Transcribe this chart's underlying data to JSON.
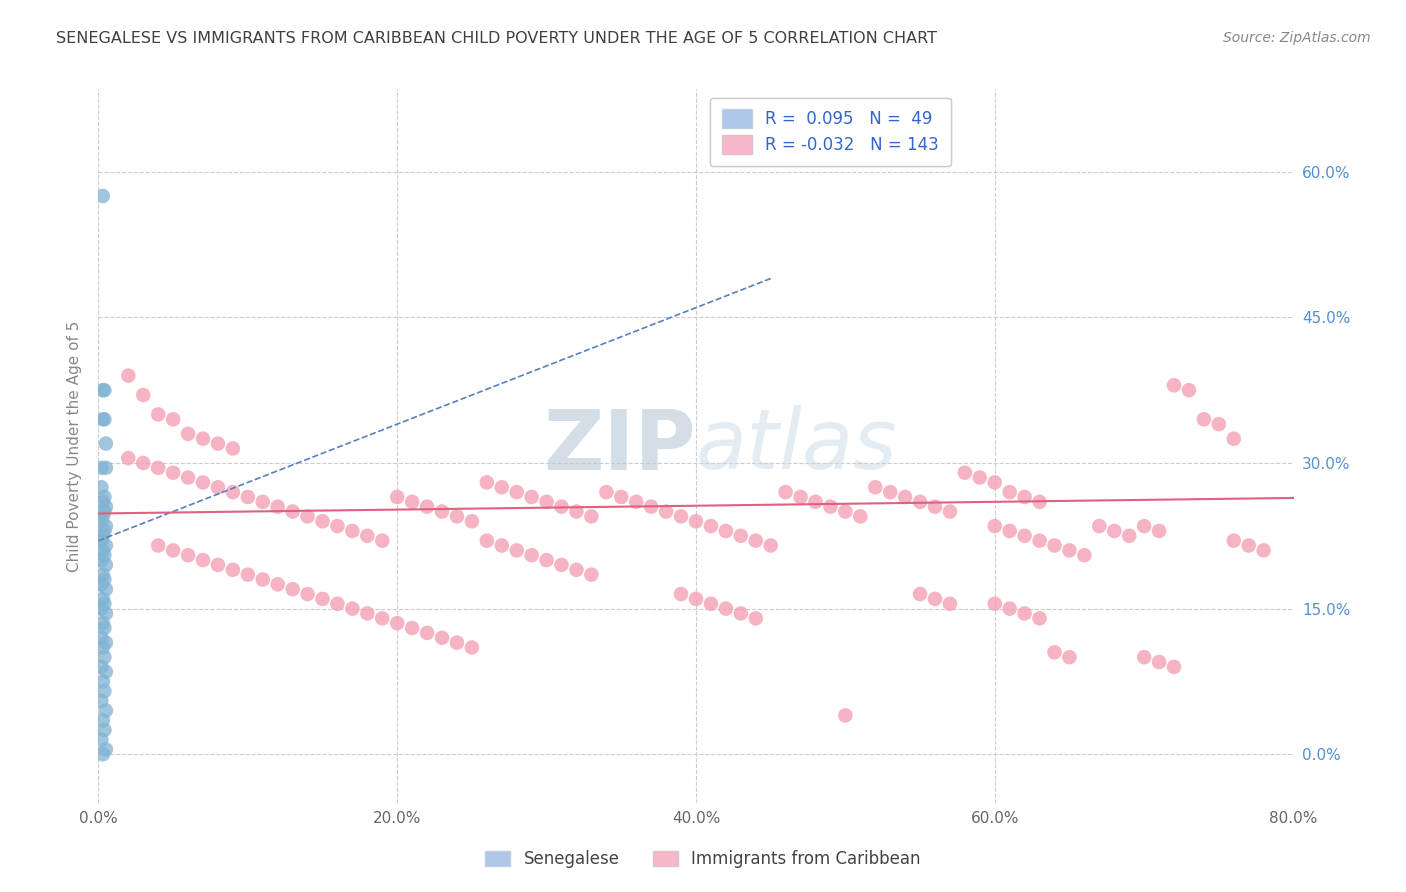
{
  "title": "SENEGALESE VS IMMIGRANTS FROM CARIBBEAN CHILD POVERTY UNDER THE AGE OF 5 CORRELATION CHART",
  "source": "Source: ZipAtlas.com",
  "ylabel": "Child Poverty Under the Age of 5",
  "xlim": [
    0.0,
    0.8
  ],
  "ylim": [
    -0.05,
    0.685
  ],
  "xtick_labels": [
    "0.0%",
    "20.0%",
    "40.0%",
    "60.0%",
    "80.0%"
  ],
  "xtick_values": [
    0.0,
    0.2,
    0.4,
    0.6,
    0.8
  ],
  "ytick_labels_right": [
    "0.0%",
    "15.0%",
    "30.0%",
    "45.0%",
    "60.0%"
  ],
  "ytick_values": [
    0.0,
    0.15,
    0.3,
    0.45,
    0.6
  ],
  "blue_color": "#7fb3d3",
  "pink_color": "#f4a0b5",
  "blue_trend_color": "#5580c0",
  "pink_trend_color": "#e06080",
  "watermark_zip": "ZIP",
  "watermark_atlas": "atlas",
  "background_color": "#ffffff",
  "grid_color": "#cccccc",
  "title_color": "#404040",
  "blue_scatter": [
    [
      0.003,
      0.575
    ],
    [
      0.004,
      0.375
    ],
    [
      0.004,
      0.345
    ],
    [
      0.005,
      0.32
    ],
    [
      0.005,
      0.295
    ],
    [
      0.003,
      0.375
    ],
    [
      0.003,
      0.345
    ],
    [
      0.002,
      0.295
    ],
    [
      0.002,
      0.275
    ],
    [
      0.004,
      0.265
    ],
    [
      0.003,
      0.26
    ],
    [
      0.005,
      0.255
    ],
    [
      0.004,
      0.25
    ],
    [
      0.003,
      0.245
    ],
    [
      0.002,
      0.24
    ],
    [
      0.005,
      0.235
    ],
    [
      0.004,
      0.23
    ],
    [
      0.003,
      0.225
    ],
    [
      0.002,
      0.22
    ],
    [
      0.005,
      0.215
    ],
    [
      0.003,
      0.21
    ],
    [
      0.004,
      0.205
    ],
    [
      0.002,
      0.2
    ],
    [
      0.005,
      0.195
    ],
    [
      0.003,
      0.185
    ],
    [
      0.004,
      0.18
    ],
    [
      0.002,
      0.175
    ],
    [
      0.005,
      0.17
    ],
    [
      0.003,
      0.16
    ],
    [
      0.004,
      0.155
    ],
    [
      0.002,
      0.15
    ],
    [
      0.005,
      0.145
    ],
    [
      0.003,
      0.135
    ],
    [
      0.004,
      0.13
    ],
    [
      0.002,
      0.12
    ],
    [
      0.005,
      0.115
    ],
    [
      0.003,
      0.11
    ],
    [
      0.004,
      0.1
    ],
    [
      0.002,
      0.09
    ],
    [
      0.005,
      0.085
    ],
    [
      0.003,
      0.075
    ],
    [
      0.004,
      0.065
    ],
    [
      0.002,
      0.055
    ],
    [
      0.005,
      0.045
    ],
    [
      0.003,
      0.035
    ],
    [
      0.004,
      0.025
    ],
    [
      0.002,
      0.015
    ],
    [
      0.005,
      0.005
    ],
    [
      0.003,
      0.0
    ]
  ],
  "pink_scatter": [
    [
      0.02,
      0.39
    ],
    [
      0.03,
      0.37
    ],
    [
      0.04,
      0.35
    ],
    [
      0.05,
      0.345
    ],
    [
      0.06,
      0.33
    ],
    [
      0.07,
      0.325
    ],
    [
      0.08,
      0.32
    ],
    [
      0.09,
      0.315
    ],
    [
      0.02,
      0.305
    ],
    [
      0.03,
      0.3
    ],
    [
      0.04,
      0.295
    ],
    [
      0.05,
      0.29
    ],
    [
      0.06,
      0.285
    ],
    [
      0.07,
      0.28
    ],
    [
      0.08,
      0.275
    ],
    [
      0.09,
      0.27
    ],
    [
      0.1,
      0.265
    ],
    [
      0.11,
      0.26
    ],
    [
      0.12,
      0.255
    ],
    [
      0.13,
      0.25
    ],
    [
      0.14,
      0.245
    ],
    [
      0.15,
      0.24
    ],
    [
      0.16,
      0.235
    ],
    [
      0.17,
      0.23
    ],
    [
      0.18,
      0.225
    ],
    [
      0.19,
      0.22
    ],
    [
      0.2,
      0.265
    ],
    [
      0.21,
      0.26
    ],
    [
      0.22,
      0.255
    ],
    [
      0.23,
      0.25
    ],
    [
      0.24,
      0.245
    ],
    [
      0.25,
      0.24
    ],
    [
      0.26,
      0.28
    ],
    [
      0.27,
      0.275
    ],
    [
      0.28,
      0.27
    ],
    [
      0.29,
      0.265
    ],
    [
      0.3,
      0.26
    ],
    [
      0.31,
      0.255
    ],
    [
      0.32,
      0.25
    ],
    [
      0.33,
      0.245
    ],
    [
      0.04,
      0.215
    ],
    [
      0.05,
      0.21
    ],
    [
      0.06,
      0.205
    ],
    [
      0.07,
      0.2
    ],
    [
      0.08,
      0.195
    ],
    [
      0.09,
      0.19
    ],
    [
      0.1,
      0.185
    ],
    [
      0.11,
      0.18
    ],
    [
      0.12,
      0.175
    ],
    [
      0.13,
      0.17
    ],
    [
      0.14,
      0.165
    ],
    [
      0.15,
      0.16
    ],
    [
      0.16,
      0.155
    ],
    [
      0.17,
      0.15
    ],
    [
      0.18,
      0.145
    ],
    [
      0.19,
      0.14
    ],
    [
      0.2,
      0.135
    ],
    [
      0.21,
      0.13
    ],
    [
      0.22,
      0.125
    ],
    [
      0.23,
      0.12
    ],
    [
      0.24,
      0.115
    ],
    [
      0.25,
      0.11
    ],
    [
      0.26,
      0.22
    ],
    [
      0.27,
      0.215
    ],
    [
      0.28,
      0.21
    ],
    [
      0.29,
      0.205
    ],
    [
      0.3,
      0.2
    ],
    [
      0.31,
      0.195
    ],
    [
      0.32,
      0.19
    ],
    [
      0.33,
      0.185
    ],
    [
      0.34,
      0.27
    ],
    [
      0.35,
      0.265
    ],
    [
      0.36,
      0.26
    ],
    [
      0.37,
      0.255
    ],
    [
      0.38,
      0.25
    ],
    [
      0.39,
      0.245
    ],
    [
      0.4,
      0.24
    ],
    [
      0.41,
      0.235
    ],
    [
      0.42,
      0.23
    ],
    [
      0.43,
      0.225
    ],
    [
      0.44,
      0.22
    ],
    [
      0.45,
      0.215
    ],
    [
      0.46,
      0.27
    ],
    [
      0.47,
      0.265
    ],
    [
      0.48,
      0.26
    ],
    [
      0.49,
      0.255
    ],
    [
      0.5,
      0.25
    ],
    [
      0.51,
      0.245
    ],
    [
      0.52,
      0.275
    ],
    [
      0.53,
      0.27
    ],
    [
      0.54,
      0.265
    ],
    [
      0.55,
      0.26
    ],
    [
      0.56,
      0.255
    ],
    [
      0.57,
      0.25
    ],
    [
      0.39,
      0.165
    ],
    [
      0.4,
      0.16
    ],
    [
      0.41,
      0.155
    ],
    [
      0.42,
      0.15
    ],
    [
      0.43,
      0.145
    ],
    [
      0.44,
      0.14
    ],
    [
      0.5,
      0.04
    ],
    [
      0.55,
      0.165
    ],
    [
      0.56,
      0.16
    ],
    [
      0.57,
      0.155
    ],
    [
      0.58,
      0.29
    ],
    [
      0.59,
      0.285
    ],
    [
      0.6,
      0.28
    ],
    [
      0.61,
      0.27
    ],
    [
      0.62,
      0.265
    ],
    [
      0.63,
      0.26
    ],
    [
      0.6,
      0.235
    ],
    [
      0.61,
      0.23
    ],
    [
      0.62,
      0.225
    ],
    [
      0.63,
      0.22
    ],
    [
      0.64,
      0.215
    ],
    [
      0.65,
      0.21
    ],
    [
      0.66,
      0.205
    ],
    [
      0.67,
      0.235
    ],
    [
      0.68,
      0.23
    ],
    [
      0.69,
      0.225
    ],
    [
      0.7,
      0.235
    ],
    [
      0.71,
      0.23
    ],
    [
      0.72,
      0.38
    ],
    [
      0.73,
      0.375
    ],
    [
      0.74,
      0.345
    ],
    [
      0.75,
      0.34
    ],
    [
      0.76,
      0.325
    ],
    [
      0.76,
      0.22
    ],
    [
      0.77,
      0.215
    ],
    [
      0.78,
      0.21
    ],
    [
      0.6,
      0.155
    ],
    [
      0.61,
      0.15
    ],
    [
      0.62,
      0.145
    ],
    [
      0.63,
      0.14
    ],
    [
      0.64,
      0.105
    ],
    [
      0.65,
      0.1
    ],
    [
      0.7,
      0.1
    ],
    [
      0.71,
      0.095
    ],
    [
      0.72,
      0.09
    ]
  ]
}
